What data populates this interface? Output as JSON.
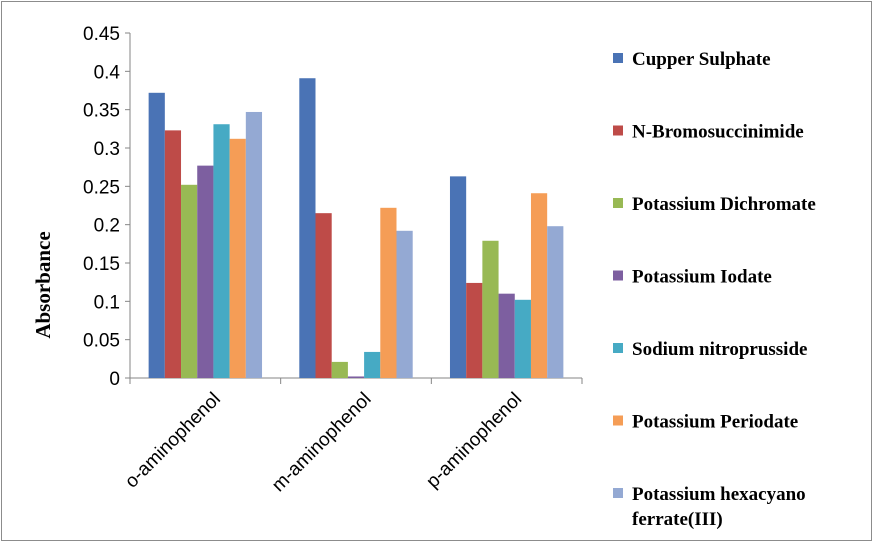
{
  "chart_data": {
    "type": "bar",
    "title": "",
    "xlabel": "",
    "ylabel": "Absorbance",
    "ylim": [
      0,
      0.45
    ],
    "yticks": [
      "0",
      "0.05",
      "0.1",
      "0.15",
      "0.2",
      "0.25",
      "0.3",
      "0.35",
      "0.4",
      "0.45"
    ],
    "grid": false,
    "legend_position": "right",
    "categories": [
      "o-aminophenol",
      "m-aminophenol",
      "p-aminophenol"
    ],
    "series": [
      {
        "name": "Cupper Sulphate",
        "color": "#4a73b5",
        "values": [
          0.372,
          0.391,
          0.263
        ]
      },
      {
        "name": "N-Bromosuccinimide",
        "color": "#be4b48",
        "values": [
          0.323,
          0.215,
          0.124
        ]
      },
      {
        "name": "Potassium Dichromate",
        "color": "#98b954",
        "values": [
          0.252,
          0.021,
          0.179
        ]
      },
      {
        "name": "Potassium Iodate",
        "color": "#7d5fa0",
        "values": [
          0.277,
          0.002,
          0.11
        ]
      },
      {
        "name": "Sodium nitroprusside",
        "color": "#46aac4",
        "values": [
          0.331,
          0.034,
          0.102
        ]
      },
      {
        "name": "Potassium Periodate",
        "color": "#f59d56",
        "values": [
          0.312,
          0.222,
          0.241
        ]
      },
      {
        "name": "Potassium hexacyano ferrate(III)",
        "color": "#94a9d3",
        "values": [
          0.347,
          0.192,
          0.198
        ]
      }
    ]
  }
}
